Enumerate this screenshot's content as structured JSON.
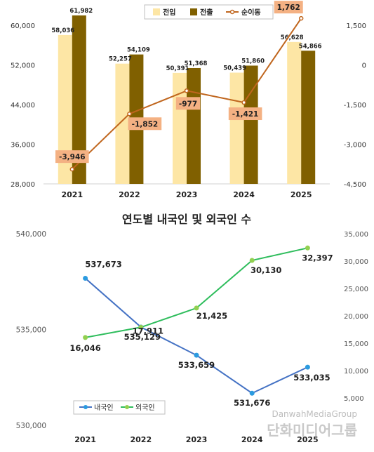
{
  "colors": {
    "inflow": "#fde6a5",
    "outflow": "#806000",
    "net": "#c0661e",
    "net_label_bg": "#f4b183",
    "korean": "#4472c4",
    "korean_marker": "#2b9be0",
    "foreign": "#2ebd5c",
    "foreign_marker": "#92d050"
  },
  "chart_data": [
    {
      "type": "bar",
      "title": "",
      "categories": [
        "2021",
        "2022",
        "2023",
        "2024",
        "2025"
      ],
      "series": [
        {
          "name": "전입",
          "type": "bar",
          "axis": "left",
          "values": [
            58036,
            52257,
            50391,
            50439,
            56628
          ],
          "labels": [
            "58,036",
            "52,257",
            "50,391",
            "50,439",
            "56,628"
          ]
        },
        {
          "name": "전출",
          "type": "bar",
          "axis": "left",
          "values": [
            61982,
            54109,
            51368,
            51860,
            54866
          ],
          "labels": [
            "61,982",
            "54,109",
            "51,368",
            "51,860",
            "54,866"
          ]
        },
        {
          "name": "순이동",
          "type": "line",
          "axis": "right",
          "values": [
            -3946,
            -1852,
            -977,
            -1421,
            1762
          ],
          "labels": [
            "-3,946",
            "-1,852",
            "-977",
            "-1,421",
            "1,762"
          ]
        }
      ],
      "ylim": [
        28000,
        60000
      ],
      "y_ticks": [
        "28,000",
        "36,000",
        "44,000",
        "52,000",
        "60,000"
      ],
      "y2lim": [
        -4500,
        1500
      ],
      "y2_ticks": [
        "-4,500",
        "-3,000",
        "-1,500",
        "0",
        "1,500"
      ],
      "legend": "top",
      "grid": false
    },
    {
      "type": "line",
      "title": "연도별 내국인 및 외국인 수",
      "categories": [
        "2021",
        "2022",
        "2023",
        "2024",
        "2025"
      ],
      "series": [
        {
          "name": "내국인",
          "axis": "left",
          "values": [
            537673,
            535129,
            533659,
            531676,
            533035
          ],
          "labels": [
            "537,673",
            "535,129",
            "533,659",
            "531,676",
            "533,035"
          ]
        },
        {
          "name": "외국인",
          "axis": "right",
          "values": [
            16046,
            17911,
            21425,
            30130,
            32397
          ],
          "labels": [
            "16,046",
            "17,911",
            "21,425",
            "30,130",
            "32,397"
          ]
        }
      ],
      "ylim": [
        530000,
        540000
      ],
      "y_ticks": [
        "530,000",
        "535,000",
        "540,000"
      ],
      "y2lim": [
        5000,
        35000
      ],
      "y2_ticks": [
        "5,000",
        "10,000",
        "15,000",
        "20,000",
        "25,000",
        "30,000",
        "35,000"
      ],
      "legend": "bottom-left",
      "grid": false
    }
  ],
  "watermark": {
    "en": "DanwahMediaGroup",
    "ko": "단화미디어그룹"
  }
}
